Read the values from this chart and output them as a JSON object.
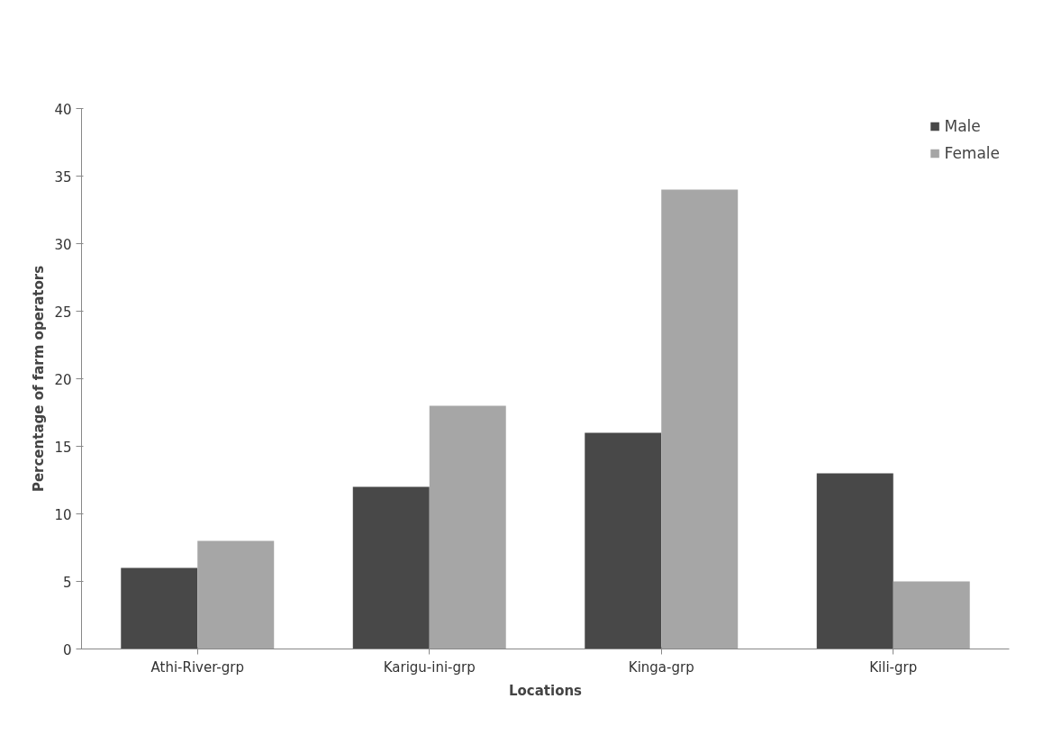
{
  "chart_data": {
    "type": "bar",
    "xlabel": "Locations",
    "ylabel": "Percentage of farm operators",
    "categories": [
      "Athi-River-grp",
      "Karigu-ini-grp",
      "Kinga-grp",
      "Kili-grp"
    ],
    "series": [
      {
        "name": "Male",
        "color": "#484848",
        "values": [
          6,
          12,
          16,
          13
        ]
      },
      {
        "name": "Female",
        "color": "#a6a6a6",
        "values": [
          8,
          18,
          34,
          5
        ]
      }
    ],
    "ylim": [
      0,
      40
    ],
    "yticks": [
      0,
      5,
      10,
      15,
      20,
      25,
      30,
      35,
      40
    ],
    "grid": false,
    "legend": "top right"
  }
}
